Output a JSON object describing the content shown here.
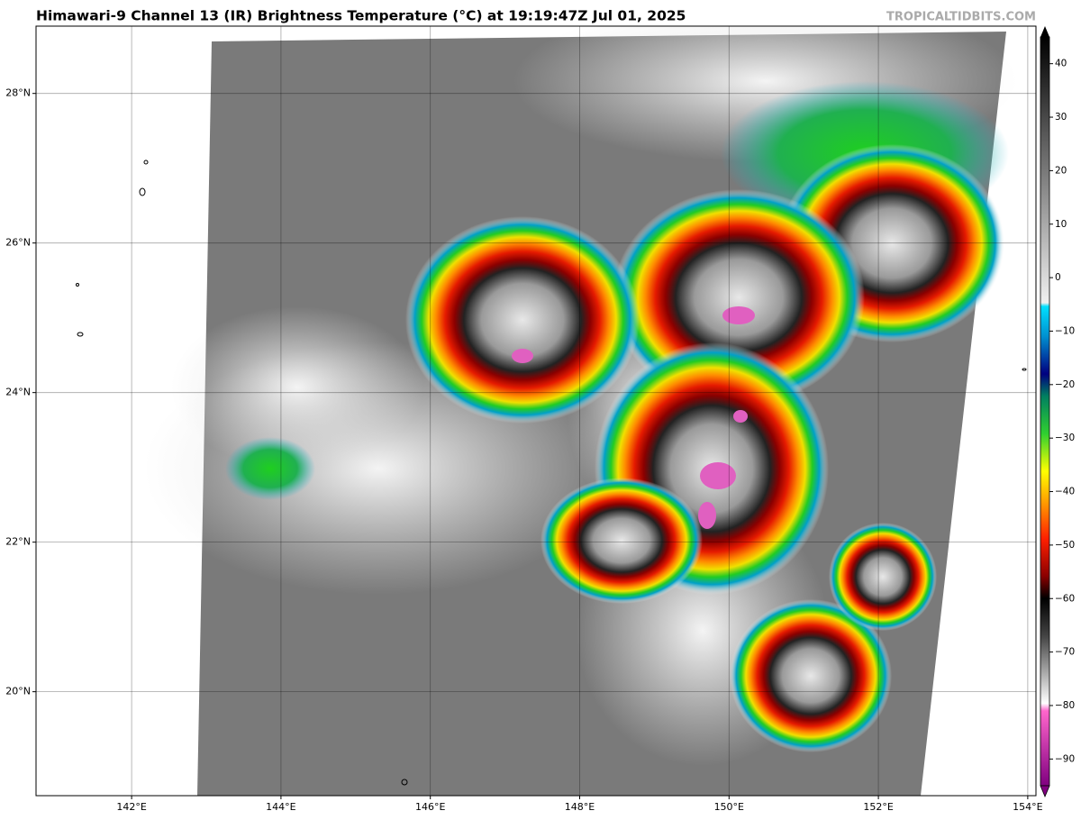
{
  "header": {
    "title": "Himawari-9 Channel 13 (IR) Brightness Temperature (°C) at 19:19:47Z Jul 01, 2025",
    "site": "TROPICALTIDBITS.COM"
  },
  "map": {
    "xlim": [
      140.72,
      154.11
    ],
    "ylim": [
      18.61,
      28.9
    ],
    "xticks": [
      {
        "value": 142,
        "label": "142°E"
      },
      {
        "value": 144,
        "label": "144°E"
      },
      {
        "value": 146,
        "label": "146°E"
      },
      {
        "value": 148,
        "label": "148°E"
      },
      {
        "value": 150,
        "label": "150°E"
      },
      {
        "value": 152,
        "label": "152°E"
      },
      {
        "value": 154,
        "label": "154°E"
      }
    ],
    "yticks": [
      {
        "value": 20,
        "label": "20°N"
      },
      {
        "value": 22,
        "label": "22°N"
      },
      {
        "value": 24,
        "label": "24°N"
      },
      {
        "value": 26,
        "label": "26°N"
      },
      {
        "value": 28,
        "label": "28°N"
      }
    ]
  },
  "colorbar": {
    "lim": [
      -95,
      45
    ],
    "ticks": [
      {
        "value": -90,
        "label": "−90"
      },
      {
        "value": -80,
        "label": "−80"
      },
      {
        "value": -70,
        "label": "−70"
      },
      {
        "value": -60,
        "label": "−60"
      },
      {
        "value": -50,
        "label": "−50"
      },
      {
        "value": -40,
        "label": "−40"
      },
      {
        "value": -30,
        "label": "−30"
      },
      {
        "value": -20,
        "label": "−20"
      },
      {
        "value": -10,
        "label": "−10"
      },
      0,
      10,
      20,
      30,
      40
    ]
  }
}
